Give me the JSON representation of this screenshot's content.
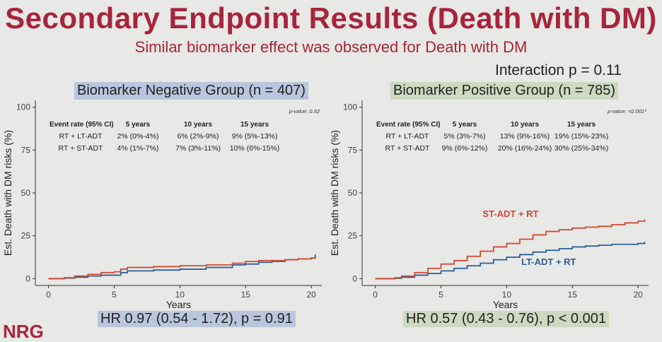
{
  "slide": {
    "title": "Secondary Endpoint Results (Death with DM)",
    "subtitle": "Similar biomarker effect was observed for Death with DM",
    "interaction": "Interaction p = 0.11",
    "logo_text": "NRG"
  },
  "colors": {
    "title": "#a8243b",
    "lt_adt": "#2e5f95",
    "st_adt": "#cf4a33",
    "neg_highlight": "#b9c6dd",
    "pos_highlight": "#cdd9c0"
  },
  "chart_data": [
    {
      "type": "line",
      "group_label": "Biomarker Negative Group (n = 407)",
      "hr_text": "HR 0.97 (0.54 - 1.72), p = 0.91",
      "xlabel": "Years",
      "ylabel": "Est. Death with DM risks (%)",
      "xlim": [
        -1,
        20.8
      ],
      "ylim": [
        -4,
        104
      ],
      "xticks": [
        "0",
        "5",
        "10",
        "15",
        "20"
      ],
      "yticks": [
        "0",
        "25",
        "50",
        "75",
        "100"
      ],
      "p_value": "p-value: 0.92",
      "table": {
        "headers": [
          "Event rate (95% CI)",
          "5 years",
          "10 years",
          "15 years"
        ],
        "rows": [
          {
            "label": "RT + LT-ADT",
            "cells": [
              "2% (0%-4%)",
              "6% (2%-9%)",
              "9% (5%-13%)"
            ]
          },
          {
            "label": "RT + ST-ADT",
            "cells": [
              "4% (1%-7%)",
              "7% (3%-11%)",
              "10% (6%-15%)"
            ]
          }
        ]
      },
      "series": [
        {
          "name": "RT + LT-ADT",
          "x": [
            0,
            1.2,
            2,
            3,
            4,
            5,
            5.5,
            6,
            8,
            10,
            12,
            14,
            15,
            16,
            17,
            18,
            19,
            20,
            20.3
          ],
          "y": [
            0,
            0.3,
            0.8,
            1.5,
            2,
            2,
            3.5,
            4.5,
            5,
            5.5,
            6.5,
            8,
            8.5,
            9.5,
            10,
            11,
            11.5,
            12,
            14
          ]
        },
        {
          "name": "RT + ST-ADT",
          "x": [
            0,
            1.2,
            2,
            3,
            4,
            5,
            5.5,
            6,
            8,
            10,
            12,
            14,
            15,
            16,
            17,
            18,
            19,
            20,
            20.3
          ],
          "y": [
            0,
            0.5,
            1.5,
            2.5,
            3.5,
            4,
            5.5,
            6.5,
            7,
            7.5,
            8,
            9,
            10,
            10.5,
            10.5,
            11,
            11.5,
            12,
            12
          ]
        }
      ]
    },
    {
      "type": "line",
      "group_label": "Biomarker Positive Group (n = 785)",
      "hr_text": "HR 0.57 (0.43 - 0.76), p < 0.001",
      "xlabel": "Years",
      "ylabel": "Est. Death with DM risks (%)",
      "xlim": [
        -1,
        20.8
      ],
      "ylim": [
        -4,
        104
      ],
      "xticks": [
        "0",
        "5",
        "10",
        "15",
        "20"
      ],
      "yticks": [
        "0",
        "25",
        "50",
        "75",
        "100"
      ],
      "p_value": "p-value: <0.001*",
      "table": {
        "headers": [
          "Event rate (95% CI)",
          "5 years",
          "10 years",
          "15 years"
        ],
        "rows": [
          {
            "label": "RT + LT-ADT",
            "cells": [
              "5% (3%-7%)",
              "13% (9%-16%)",
              "19% (15%-23%)"
            ]
          },
          {
            "label": "RT + ST-ADT",
            "cells": [
              "9% (6%-12%)",
              "20% (16%-24%)",
              "30% (25%-34%)"
            ]
          }
        ]
      },
      "curve_labels": [
        {
          "text": "ST-ADT + RT",
          "series": "RT + ST-ADT",
          "at": [
            10.3,
            36
          ]
        },
        {
          "text": "LT-ADT + RT",
          "series": "RT + LT-ADT",
          "at": [
            13.2,
            8
          ]
        }
      ],
      "series": [
        {
          "name": "RT + LT-ADT",
          "x": [
            0,
            1.5,
            2,
            3,
            4,
            5,
            6,
            7,
            8,
            9,
            10,
            11,
            12,
            13,
            14,
            15,
            16,
            17,
            18,
            19,
            20,
            20.5
          ],
          "y": [
            0,
            0.2,
            0.8,
            2,
            3,
            4.5,
            6,
            7.5,
            9,
            11,
            12.5,
            14,
            15.5,
            16.5,
            17.5,
            18.5,
            19,
            19.5,
            20,
            20,
            20.5,
            21.5
          ]
        },
        {
          "name": "RT + ST-ADT",
          "x": [
            0,
            1.5,
            2,
            3,
            4,
            5,
            6,
            7,
            8,
            9,
            10,
            11,
            12,
            13,
            14,
            15,
            16,
            17,
            18,
            19,
            20,
            20.5
          ],
          "y": [
            0,
            0.5,
            1.5,
            3.5,
            6,
            8.5,
            10.5,
            13,
            16,
            18.5,
            20.5,
            23,
            25.5,
            27.5,
            28.5,
            29.5,
            30,
            30.5,
            31.5,
            32.5,
            33.5,
            34.5
          ]
        }
      ]
    }
  ]
}
